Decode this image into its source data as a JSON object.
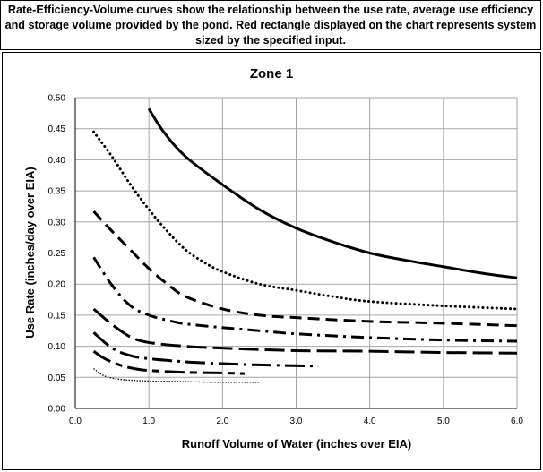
{
  "caption": "Rate-Efficiency-Volume curves show the relationship between the use rate, average use efficiency and storage volume provided by the pond. Red rectangle displayed on the chart represents system sized by the specified input.",
  "chart_data": {
    "type": "line",
    "title": "Zone 1",
    "xlabel": "Runoff Volume of Water (inches over EIA)",
    "ylabel": "Use Rate (inches/day over EIA)",
    "xlim": [
      0,
      6
    ],
    "ylim": [
      0,
      0.5
    ],
    "x_ticks": [
      "0.0",
      "1.0",
      "2.0",
      "3.0",
      "4.0",
      "5.0",
      "6.0"
    ],
    "y_ticks": [
      "0.00",
      "0.05",
      "0.10",
      "0.15",
      "0.20",
      "0.25",
      "0.30",
      "0.35",
      "0.40",
      "0.45",
      "0.50"
    ],
    "grid": true,
    "series": [
      {
        "style": "solid",
        "x": [
          1.0,
          1.2,
          1.5,
          2.0,
          2.5,
          3.0,
          3.5,
          4.0,
          4.5,
          5.0,
          5.5,
          6.0
        ],
        "y": [
          0.482,
          0.445,
          0.405,
          0.36,
          0.32,
          0.29,
          0.268,
          0.25,
          0.238,
          0.228,
          0.218,
          0.21
        ]
      },
      {
        "style": "dotted",
        "x": [
          0.25,
          0.5,
          0.75,
          1.0,
          1.25,
          1.5,
          1.75,
          2.0,
          2.5,
          3.0,
          3.5,
          4.0,
          5.0,
          6.0
        ],
        "y": [
          0.445,
          0.405,
          0.36,
          0.32,
          0.285,
          0.255,
          0.235,
          0.22,
          0.2,
          0.19,
          0.18,
          0.172,
          0.165,
          0.16
        ]
      },
      {
        "style": "dashed",
        "x": [
          0.25,
          0.5,
          0.75,
          1.0,
          1.25,
          1.5,
          2.0,
          2.5,
          3.0,
          4.0,
          5.0,
          6.0
        ],
        "y": [
          0.317,
          0.285,
          0.255,
          0.225,
          0.2,
          0.18,
          0.16,
          0.15,
          0.146,
          0.14,
          0.137,
          0.133
        ]
      },
      {
        "style": "dash-dot",
        "x": [
          0.25,
          0.5,
          0.75,
          1.0,
          1.25,
          1.5,
          2.0,
          2.5,
          3.0,
          4.0,
          5.0,
          6.0
        ],
        "y": [
          0.243,
          0.198,
          0.165,
          0.15,
          0.142,
          0.136,
          0.13,
          0.125,
          0.12,
          0.114,
          0.11,
          0.108
        ]
      },
      {
        "style": "long-dash",
        "x": [
          0.25,
          0.5,
          0.75,
          1.0,
          1.5,
          2.0,
          3.0,
          4.0,
          5.0,
          6.0
        ],
        "y": [
          0.16,
          0.135,
          0.115,
          0.106,
          0.1,
          0.097,
          0.093,
          0.092,
          0.09,
          0.089
        ]
      },
      {
        "style": "long-dash-dot",
        "x": [
          0.25,
          0.5,
          0.75,
          1.0,
          1.5,
          2.0,
          2.5,
          3.3
        ],
        "y": [
          0.122,
          0.097,
          0.085,
          0.08,
          0.075,
          0.072,
          0.07,
          0.068
        ]
      },
      {
        "style": "long-dash-short",
        "x": [
          0.25,
          0.4,
          0.6,
          0.8,
          1.0,
          1.5,
          2.0,
          2.3
        ],
        "y": [
          0.092,
          0.08,
          0.07,
          0.064,
          0.061,
          0.058,
          0.057,
          0.056
        ]
      },
      {
        "style": "fine-dotted",
        "x": [
          0.25,
          0.4,
          0.6,
          0.8,
          1.0,
          1.5,
          2.0,
          2.5
        ],
        "y": [
          0.064,
          0.052,
          0.047,
          0.045,
          0.044,
          0.043,
          0.042,
          0.042
        ]
      }
    ]
  }
}
